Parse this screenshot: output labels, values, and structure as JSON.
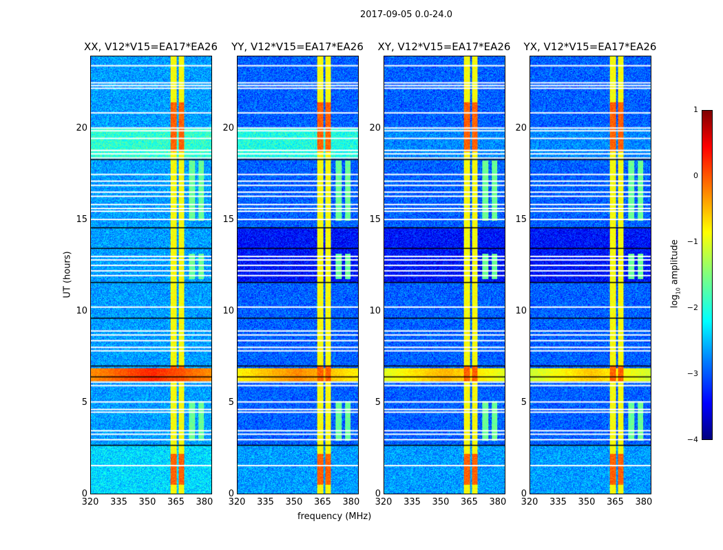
{
  "chart_data": {
    "type": "heatmap",
    "title": "2017-09-05 0.0-24.0",
    "xlabel": "frequency (MHz)",
    "ylabel": "UT (hours)",
    "xlim": [
      320,
      384
    ],
    "ylim": [
      0,
      24
    ],
    "xticks": [
      320,
      335,
      350,
      365,
      380
    ],
    "yticks": [
      0,
      5,
      10,
      15,
      20
    ],
    "colorbar": {
      "label": "log10 amplitude",
      "label_main": "log",
      "label_sub": "10",
      "label_rest": " amplitude",
      "range": [
        -4,
        1
      ],
      "ticks": [
        1,
        0,
        -1,
        -2,
        -3,
        -4
      ],
      "colormap": "jet"
    },
    "panels": [
      {
        "title": "XX, V12*V15=EA17*EA26",
        "background": -2.6,
        "bright_interval_background": -1.9,
        "rfi_peak": 0.2
      },
      {
        "title": "YY, V12*V15=EA17*EA26",
        "background": -2.9,
        "bright_interval_background": -2.0,
        "rfi_peak": -0.3
      },
      {
        "title": "XY, V12*V15=EA17*EA26",
        "background": -2.9,
        "bright_interval_background": -2.7,
        "rfi_peak": -0.5
      },
      {
        "title": "YX, V12*V15=EA17*EA26",
        "background": -2.9,
        "bright_interval_background": -2.7,
        "rfi_peak": -0.6
      }
    ],
    "signal_bands": [
      {
        "f_start": 362,
        "f_end": 365.5,
        "level": -0.9
      },
      {
        "f_start": 366.5,
        "f_end": 369.5,
        "level": -0.9
      },
      {
        "f_start": 372,
        "f_end": 375,
        "level": -1.6,
        "t_ranges": [
          [
            2.9,
            5.1
          ],
          [
            11.8,
            13.2
          ],
          [
            15.0,
            18.3
          ]
        ]
      },
      {
        "f_start": 377,
        "f_end": 380,
        "level": -1.6,
        "t_ranges": [
          [
            2.9,
            5.1
          ],
          [
            11.8,
            13.2
          ],
          [
            15.0,
            18.3
          ]
        ]
      }
    ],
    "strong_intervals": [
      [
        0.5,
        2.2
      ],
      [
        6.2,
        7.0
      ],
      [
        18.8,
        21.5
      ]
    ],
    "broadband_rfi_interval": [
      6.2,
      6.9
    ],
    "bright_background_interval": [
      18.4,
      20.1
    ],
    "dark_background_interval": [
      11.6,
      14.6
    ],
    "flagged_times": [
      23.49,
      22.55,
      22.4,
      22.25,
      20.9,
      20.07,
      19.92,
      19.5,
      18.84,
      18.65,
      18.42,
      17.52,
      17.15,
      16.92,
      16.55,
      16.32,
      15.87,
      15.65,
      15.5,
      15.05,
      13.02,
      12.83,
      12.53,
      12.23,
      11.97,
      10.24,
      8.93,
      8.71,
      8.4,
      8.03,
      7.84,
      6.12,
      5.93,
      5.03,
      4.62,
      4.47,
      3.45,
      3.26,
      2.96,
      1.54
    ],
    "scan_boundaries": [
      18.35,
      14.6,
      13.47,
      11.6,
      9.64,
      7.02,
      6.42,
      2.66
    ]
  }
}
